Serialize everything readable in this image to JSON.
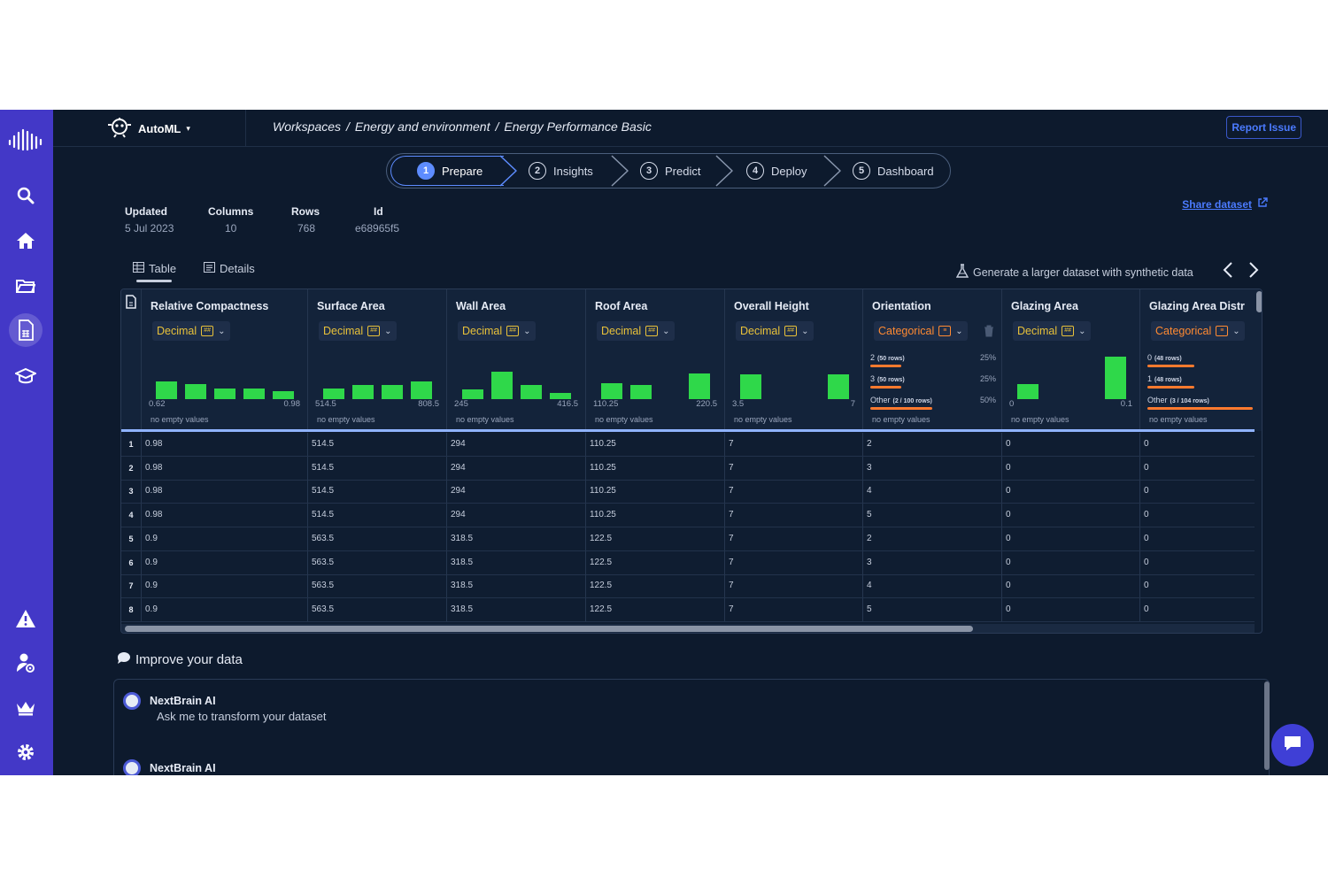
{
  "app": {
    "brand": "AutoML",
    "report_issue": "Report Issue",
    "breadcrumb": [
      "Workspaces",
      "/",
      "Energy and environment",
      "/",
      "Energy Performance Basic"
    ]
  },
  "steps": [
    {
      "num": "1",
      "label": "Prepare"
    },
    {
      "num": "2",
      "label": "Insights"
    },
    {
      "num": "3",
      "label": "Predict"
    },
    {
      "num": "4",
      "label": "Deploy"
    },
    {
      "num": "5",
      "label": "Dashboard"
    }
  ],
  "meta": {
    "updated_label": "Updated",
    "updated_value": "5 Jul 2023",
    "columns_label": "Columns",
    "columns_value": "10",
    "rows_label": "Rows",
    "rows_value": "768",
    "id_label": "Id",
    "id_value": "e68965f5",
    "share": "Share dataset"
  },
  "tabs": {
    "table": "Table",
    "details": "Details",
    "synthetic": "Generate a larger dataset with synthetic data"
  },
  "columns": [
    {
      "name": "Relative Compactness",
      "type": "Decimal",
      "min": "0.62",
      "max": "0.98",
      "empty": "no empty values",
      "hist": [
        0.35,
        0.3,
        0.22,
        0.22,
        0.16
      ]
    },
    {
      "name": "Surface Area",
      "type": "Decimal",
      "min": "514.5",
      "max": "808.5",
      "empty": "no empty values",
      "hist": [
        0.22,
        0.28,
        0.28,
        0.35
      ]
    },
    {
      "name": "Wall Area",
      "type": "Decimal",
      "min": "245",
      "max": "416.5",
      "empty": "no empty values",
      "hist": [
        0.2,
        0.55,
        0.28,
        0.12
      ]
    },
    {
      "name": "Roof Area",
      "type": "Decimal",
      "min": "110.25",
      "max": "220.5",
      "empty": "no empty values",
      "hist": [
        0.32,
        0.28,
        0,
        0.52
      ]
    },
    {
      "name": "Overall Height",
      "type": "Decimal",
      "min": "3.5",
      "max": "7",
      "empty": "no empty values",
      "hist": [
        0.5,
        0,
        0,
        0.5
      ]
    },
    {
      "name": "Orientation",
      "type": "Categorical",
      "empty": "no empty values",
      "cats": [
        {
          "label": "2",
          "sub": "(50 rows)",
          "pct": "25%",
          "frac": 0.25
        },
        {
          "label": "3",
          "sub": "(50 rows)",
          "pct": "25%",
          "frac": 0.25
        },
        {
          "label": "Other",
          "sub": "(2 / 100 rows)",
          "pct": "50%",
          "frac": 0.5
        }
      ]
    },
    {
      "name": "Glazing Area",
      "type": "Decimal",
      "min": "0",
      "max": "0.1",
      "empty": "no empty values",
      "hist": [
        0.3,
        0,
        0,
        0.85
      ]
    },
    {
      "name": "Glazing Area Distr",
      "type": "Categorical",
      "empty": "no empty values",
      "cats": [
        {
          "label": "0",
          "sub": "(48 rows)",
          "pct": "",
          "frac": 0.38
        },
        {
          "label": "1",
          "sub": "(48 rows)",
          "pct": "",
          "frac": 0.38
        },
        {
          "label": "Other",
          "sub": "(3 / 104 rows)",
          "pct": "",
          "frac": 0.85
        }
      ]
    }
  ],
  "rows": [
    [
      "1",
      "0.98",
      "514.5",
      "294",
      "110.25",
      "7",
      "2",
      "0",
      "0"
    ],
    [
      "2",
      "0.98",
      "514.5",
      "294",
      "110.25",
      "7",
      "3",
      "0",
      "0"
    ],
    [
      "3",
      "0.98",
      "514.5",
      "294",
      "110.25",
      "7",
      "4",
      "0",
      "0"
    ],
    [
      "4",
      "0.98",
      "514.5",
      "294",
      "110.25",
      "7",
      "5",
      "0",
      "0"
    ],
    [
      "5",
      "0.9",
      "563.5",
      "318.5",
      "122.5",
      "7",
      "2",
      "0",
      "0"
    ],
    [
      "6",
      "0.9",
      "563.5",
      "318.5",
      "122.5",
      "7",
      "3",
      "0",
      "0"
    ],
    [
      "7",
      "0.9",
      "563.5",
      "318.5",
      "122.5",
      "7",
      "4",
      "0",
      "0"
    ],
    [
      "8",
      "0.9",
      "563.5",
      "318.5",
      "122.5",
      "7",
      "5",
      "0",
      "0"
    ]
  ],
  "improve": {
    "title": "Improve your data",
    "messages": [
      {
        "author": "NextBrain AI",
        "text": "Ask me to transform your dataset"
      },
      {
        "author": "NextBrain AI",
        "text": ""
      }
    ]
  },
  "colors": {
    "accent": "#5d8cff",
    "sidebar": "#4338c7",
    "hist": "#2fd84a",
    "categorical": "#ff7a2e",
    "decimal": "#e8c13a"
  }
}
